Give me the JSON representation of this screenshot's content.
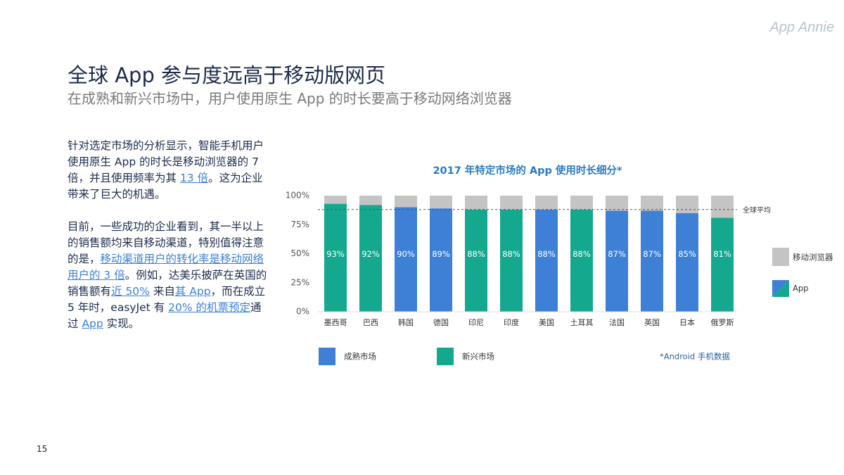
{
  "header": {
    "title": "全球 App 参与度远高于移动版网页",
    "subtitle": "在成熟和新兴市场中，用户使用原生 App 的时长要高于移动网络浏览器",
    "logo": "App Annie"
  },
  "body": {
    "paragraphs": [
      [
        {
          "text": "针对选定市场的分析显示，智能手机用户使用原生 App 的时长是移动浏览器的 7 倍，并且使用频率为其 "
        },
        {
          "text": "13 倍",
          "link": true
        },
        {
          "text": "。这为企业带来了巨大的机遇。"
        }
      ],
      [
        {
          "text": "目前，一些成功的企业看到，其一半以上的销售额均来自移动渠道，特别值得注意的是，"
        },
        {
          "text": "移动渠道用户的转化率是移动网络用户的 3 倍",
          "link": true
        },
        {
          "text": "。例如，达美乐披萨在英国的销售额有"
        },
        {
          "text": "近 50%",
          "link": true
        },
        {
          "text": " 来自"
        },
        {
          "text": "其 App",
          "link": true
        },
        {
          "text": "，而在成立 5 年时，easyJet 有 "
        },
        {
          "text": "20% 的机票预定",
          "link": true
        },
        {
          "text": "通过 "
        },
        {
          "text": "App",
          "link": true
        },
        {
          "text": " 实现。"
        }
      ]
    ]
  },
  "page_number": "15",
  "chart_data": {
    "type": "stacked-bar",
    "title": "2017 年特定市场的 App 使用时长细分*",
    "categories": [
      "墨西哥",
      "巴西",
      "韩国",
      "德国",
      "印尼",
      "印度",
      "美国",
      "土耳其",
      "法国",
      "英国",
      "日本",
      "俄罗斯"
    ],
    "series": [
      {
        "name": "App",
        "values": [
          93,
          92,
          90,
          89,
          88,
          88,
          88,
          88,
          87,
          87,
          85,
          81
        ],
        "value_labels": [
          "93%",
          "92%",
          "90%",
          "89%",
          "88%",
          "88%",
          "88%",
          "88%",
          "87%",
          "87%",
          "85%",
          "81%"
        ],
        "colors": [
          "#14a98e",
          "#14a98e",
          "#3d80d6",
          "#3d80d6",
          "#14a98e",
          "#14a98e",
          "#3d80d6",
          "#14a98e",
          "#3d80d6",
          "#3d80d6",
          "#3d80d6",
          "#14a98e"
        ]
      },
      {
        "name": "移动浏览器",
        "color": "#c4c4c4",
        "values": [
          7,
          8,
          10,
          11,
          12,
          12,
          12,
          12,
          13,
          13,
          15,
          19
        ]
      }
    ],
    "groups": [
      {
        "name": "成熟市场",
        "color": "#3d80d6"
      },
      {
        "name": "新兴市场",
        "color": "#14a98e"
      }
    ],
    "average": {
      "value": 88,
      "label": "全球平均"
    },
    "ylim": [
      0,
      100
    ],
    "yticks": [
      {
        "value": 0,
        "label": "0%"
      },
      {
        "value": 25,
        "label": "25%"
      },
      {
        "value": 50,
        "label": "50%"
      },
      {
        "value": 75,
        "label": "75%"
      },
      {
        "value": 100,
        "label": "100%"
      }
    ],
    "note": "*Android 手机数据"
  }
}
